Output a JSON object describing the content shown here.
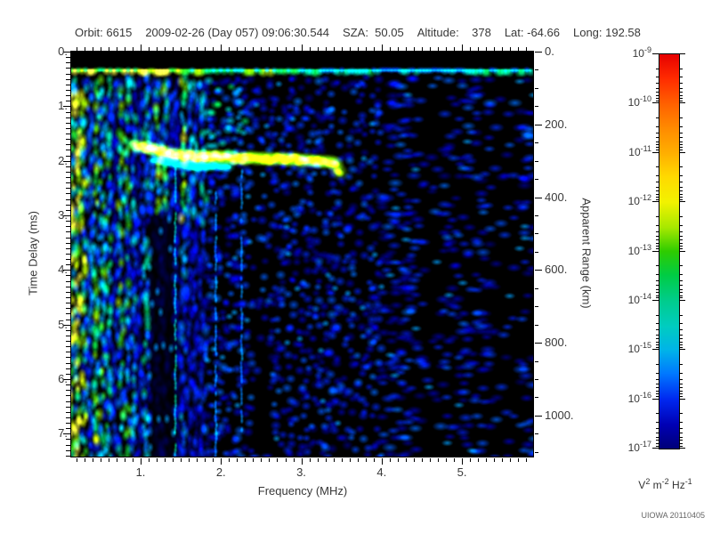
{
  "header": {
    "parts": [
      "Orbit: 6615",
      "2009-02-26 (Day 057) 09:06:30.544",
      "SZA:  50.05",
      "Altitude:    378",
      "Lat: -64.66",
      "Long: 192.58"
    ]
  },
  "credit": "UIOWA 20110405",
  "chart_data": {
    "type": "heatmap",
    "description": "Radar sounder ionogram: received spectral density vs frequency (x) and time delay / apparent range (y), log-color scale",
    "x_axis": {
      "title": "Frequency (MHz)",
      "lim": [
        0.136,
        5.886
      ],
      "major_ticks": [
        1,
        2,
        3,
        4,
        5
      ],
      "major_labels": [
        "1.",
        "2.",
        "3.",
        "4.",
        "5."
      ],
      "minor_step": 0.1
    },
    "y_axis_left": {
      "title": "Time Delay (ms)",
      "lim": [
        0,
        7.42
      ],
      "major_ticks": [
        0,
        1,
        2,
        3,
        4,
        5,
        6,
        7
      ],
      "major_labels": [
        "0.",
        "1.",
        "2.",
        "3.",
        "4.",
        "5.",
        "6.",
        "7."
      ],
      "minor_step": 0.1
    },
    "y_axis_right": {
      "title": "Apparent Range (km)",
      "lim": [
        0,
        1113
      ],
      "major_ticks": [
        0,
        200,
        400,
        600,
        800,
        1000
      ],
      "major_labels": [
        "0.",
        "200.",
        "400.",
        "600.",
        "800.",
        "1000."
      ],
      "minor_step": 50
    },
    "colorbar": {
      "scale": "log",
      "base": "10",
      "exponents": [
        -9,
        -10,
        -11,
        -12,
        -13,
        -14,
        -15,
        -16,
        -17
      ],
      "unit_parts": [
        "V",
        "2",
        " m",
        "-2",
        " Hz",
        "-1"
      ],
      "gradient": [
        [
          0,
          "#e60000"
        ],
        [
          0.06,
          "#ff2a00"
        ],
        [
          0.125,
          "#ff6000"
        ],
        [
          0.19,
          "#ff8c00"
        ],
        [
          0.25,
          "#ffae00"
        ],
        [
          0.31,
          "#ffd900"
        ],
        [
          0.375,
          "#f2f200"
        ],
        [
          0.44,
          "#a6e800"
        ],
        [
          0.5,
          "#2ecc00"
        ],
        [
          0.56,
          "#00cc44"
        ],
        [
          0.625,
          "#00cc8c"
        ],
        [
          0.69,
          "#00ccc0"
        ],
        [
          0.75,
          "#00b4e8"
        ],
        [
          0.81,
          "#0078ff"
        ],
        [
          0.875,
          "#0028f0"
        ],
        [
          0.94,
          "#0000b4"
        ],
        [
          1,
          "#000078"
        ]
      ]
    },
    "features": [
      {
        "id": "blank-top",
        "type": "blank",
        "t": [
          0,
          0.26
        ]
      },
      {
        "id": "rf-interference-band",
        "type": "hband",
        "t": [
          0.27,
          0.45
        ],
        "intensity": [
          0.5,
          0.95
        ]
      },
      {
        "id": "broadband-low-freq-noise",
        "type": "noise",
        "style": "vertical-stripes",
        "f": [
          0.136,
          1.82
        ],
        "t": [
          0.45,
          7.42
        ],
        "intensity": [
          0.3,
          1.0
        ]
      },
      {
        "id": "plasma-harmonic-marks",
        "type": "dots",
        "f": [
          0.136,
          0.34
        ],
        "t_start": 0.95,
        "t_step": 0.73,
        "intensity": 1.0
      },
      {
        "id": "bright-noise-line",
        "type": "vline",
        "f": 0.44,
        "t": [
          0.45,
          7.42
        ],
        "intensity": 0.85
      },
      {
        "id": "quiet-gap-low",
        "type": "quiet",
        "f": [
          1.12,
          1.42
        ],
        "t": [
          3.0,
          7.42
        ],
        "partial": 0.9
      },
      {
        "id": "dashed-cyan-line",
        "type": "vline-dashed",
        "f": 1.435,
        "t": [
          2.0,
          7.42
        ],
        "intensity": 0.66
      },
      {
        "id": "faint-strand-a",
        "type": "vline-dashed",
        "f": 1.94,
        "t": [
          2.6,
          7.42
        ],
        "intensity": 0.5
      },
      {
        "id": "faint-strand-b",
        "type": "vline-dashed",
        "f": 2.26,
        "t": [
          2.2,
          7.0
        ],
        "intensity": 0.48
      },
      {
        "id": "medium-speckle-upper",
        "type": "noise",
        "style": "speckle-medium",
        "f": [
          1.82,
          2.35
        ],
        "t": [
          0.45,
          2.0
        ],
        "intensity": [
          0.3,
          0.78
        ]
      },
      {
        "id": "ionospheric-echo-trace",
        "type": "trace",
        "points": [
          [
            0.92,
            1.72
          ],
          [
            1.1,
            1.77
          ],
          [
            1.4,
            1.88
          ],
          [
            1.8,
            1.93
          ],
          [
            2.3,
            1.95
          ],
          [
            2.8,
            1.97
          ],
          [
            3.2,
            2.0
          ],
          [
            3.42,
            2.04
          ],
          [
            3.48,
            2.24
          ]
        ],
        "half_width_ms": 0.11,
        "intensity": 0.93,
        "yellow_f": [
          1.05,
          2.15
        ]
      },
      {
        "id": "echo-lower-strand",
        "type": "trace",
        "points": [
          [
            1.15,
            1.98
          ],
          [
            1.6,
            2.1
          ],
          [
            2.1,
            2.12
          ]
        ],
        "half_width_ms": 0.07,
        "intensity": 0.68
      },
      {
        "id": "quiet-band-mid",
        "type": "quiet",
        "f": [
          2.38,
          2.58
        ],
        "t": [
          1.5,
          7.42
        ],
        "partial": 0.75
      },
      {
        "id": "sparse-blue-speckle",
        "type": "speckle",
        "f": [
          1.82,
          5.886
        ],
        "t": [
          0.45,
          7.42
        ],
        "density": [
          0.62,
          0.38
        ],
        "intensity": [
          0.18,
          0.5
        ]
      },
      {
        "id": "dark-column-a",
        "type": "quiet",
        "f": [
          4.45,
          4.78
        ],
        "t": [
          0.45,
          7.42
        ],
        "partial": 0.55
      },
      {
        "id": "dark-column-b",
        "type": "quiet",
        "f": [
          5.38,
          5.72
        ],
        "t": [
          0.45,
          7.42
        ],
        "partial": 0.55
      }
    ],
    "render": {
      "seed": 20110405,
      "cell": 7,
      "colormap": [
        [
          0,
          "#000000"
        ],
        [
          0.15,
          "#000066"
        ],
        [
          0.3,
          "#0000c8"
        ],
        [
          0.42,
          "#0033ff"
        ],
        [
          0.52,
          "#0080ff"
        ],
        [
          0.6,
          "#00c8f0"
        ],
        [
          0.68,
          "#00ddb4"
        ],
        [
          0.76,
          "#00cc50"
        ],
        [
          0.84,
          "#33cc11"
        ],
        [
          0.91,
          "#8ce600"
        ],
        [
          0.96,
          "#d2ee00"
        ],
        [
          1,
          "#ffff44"
        ]
      ]
    }
  }
}
